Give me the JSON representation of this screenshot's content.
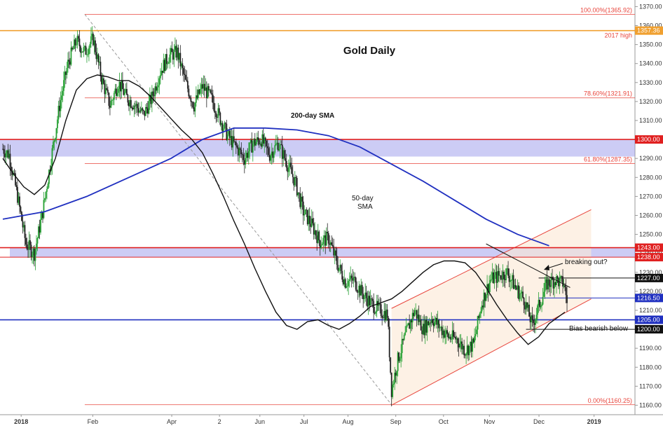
{
  "chart_data": {
    "type": "candlestick",
    "title": "Gold Daily",
    "ylim": [
      1155,
      1372
    ],
    "y_ticks": [
      1160,
      1170,
      1180,
      1190,
      1200,
      1210,
      1220,
      1230,
      1240,
      1250,
      1260,
      1270,
      1280,
      1290,
      1300,
      1310,
      1320,
      1330,
      1340,
      1350,
      1360,
      1370
    ],
    "x_labels": [
      "2018",
      "Feb",
      "Apr",
      "2",
      "Jun",
      "Jul",
      "Aug",
      "Sep",
      "Oct",
      "Nov",
      "Dec",
      "2019"
    ],
    "horizontal_levels": [
      {
        "value": 1365.92,
        "label": "100.00%(1365.92)",
        "kind": "fib",
        "color": "#e8453c"
      },
      {
        "value": 1357.36,
        "label": "2017 high",
        "tag": "1357.36",
        "kind": "resistance",
        "color": "#f0a030"
      },
      {
        "value": 1321.91,
        "label": "78.60%(1321.91)",
        "kind": "fib",
        "color": "#e8453c"
      },
      {
        "value": 1300.0,
        "tag": "1300.00",
        "kind": "level",
        "color": "#e02020"
      },
      {
        "value": 1287.35,
        "label": "61.80%(1287.35)",
        "kind": "fib",
        "color": "#e8453c"
      },
      {
        "value": 1243.0,
        "tag": "1243.00",
        "kind": "level",
        "color": "#e02020"
      },
      {
        "value": 1238.0,
        "tag": "1238.00",
        "kind": "level",
        "color": "#e02020"
      },
      {
        "value": 1227.0,
        "tag": "1227.00",
        "kind": "level",
        "color": "#111111"
      },
      {
        "value": 1216.5,
        "tag": "1216.50",
        "kind": "level",
        "color": "#2030c0"
      },
      {
        "value": 1205.0,
        "tag": "1205.00",
        "kind": "level",
        "color": "#2030c0"
      },
      {
        "value": 1200.0,
        "tag": "1200.00",
        "label": "Bias bearish below",
        "kind": "level",
        "color": "#111111"
      },
      {
        "value": 1160.25,
        "label": "0.00%(1160.25)",
        "kind": "fib",
        "color": "#e8453c"
      }
    ],
    "zones": [
      {
        "from": 1291,
        "to": 1300,
        "color": "#8e8ee8"
      },
      {
        "from": 1238,
        "to": 1243,
        "color": "#8e8ee8"
      }
    ],
    "annotations": {
      "sma200": "200-day SMA",
      "sma50_line1": "50-day",
      "sma50_line2": "SMA",
      "breakout": "breaking out?",
      "bias": "Bias bearish below"
    },
    "series": [
      {
        "name": "Gold",
        "type": "candlestick",
        "close_points": [
          [
            0,
            1295
          ],
          [
            6,
            1292
          ],
          [
            14,
            1270
          ],
          [
            22,
            1245
          ],
          [
            30,
            1240
          ],
          [
            38,
            1262
          ],
          [
            46,
            1290
          ],
          [
            54,
            1318
          ],
          [
            62,
            1340
          ],
          [
            70,
            1352
          ],
          [
            78,
            1346
          ],
          [
            86,
            1353
          ],
          [
            94,
            1332
          ],
          [
            102,
            1318
          ],
          [
            110,
            1330
          ],
          [
            118,
            1322
          ],
          [
            126,
            1318
          ],
          [
            134,
            1313
          ],
          [
            142,
            1322
          ],
          [
            150,
            1336
          ],
          [
            158,
            1344
          ],
          [
            166,
            1346
          ],
          [
            174,
            1330
          ],
          [
            182,
            1318
          ],
          [
            190,
            1328
          ],
          [
            198,
            1322
          ],
          [
            206,
            1312
          ],
          [
            214,
            1302
          ],
          [
            222,
            1296
          ],
          [
            230,
            1290
          ],
          [
            238,
            1298
          ],
          [
            246,
            1300
          ],
          [
            254,
            1292
          ],
          [
            262,
            1298
          ],
          [
            270,
            1288
          ],
          [
            278,
            1278
          ],
          [
            286,
            1262
          ],
          [
            294,
            1255
          ],
          [
            302,
            1246
          ],
          [
            310,
            1248
          ],
          [
            318,
            1235
          ],
          [
            326,
            1225
          ],
          [
            334,
            1226
          ],
          [
            342,
            1219
          ],
          [
            350,
            1214
          ],
          [
            358,
            1210
          ],
          [
            366,
            1208
          ],
          [
            370,
            1168
          ],
          [
            376,
            1184
          ],
          [
            384,
            1198
          ],
          [
            392,
            1210
          ],
          [
            400,
            1200
          ],
          [
            408,
            1206
          ],
          [
            416,
            1201
          ],
          [
            424,
            1196
          ],
          [
            432,
            1195
          ],
          [
            440,
            1189
          ],
          [
            448,
            1192
          ],
          [
            456,
            1214
          ],
          [
            464,
            1226
          ],
          [
            472,
            1228
          ],
          [
            480,
            1230
          ],
          [
            488,
            1222
          ],
          [
            496,
            1216
          ],
          [
            504,
            1202
          ],
          [
            510,
            1212
          ],
          [
            518,
            1224
          ],
          [
            526,
            1226
          ],
          [
            534,
            1224
          ],
          [
            538,
            1212
          ]
        ]
      },
      {
        "name": "200-day SMA",
        "type": "line",
        "color": "#2030c0",
        "points": [
          [
            0,
            1258
          ],
          [
            40,
            1262
          ],
          [
            80,
            1270
          ],
          [
            120,
            1280
          ],
          [
            160,
            1290
          ],
          [
            190,
            1300
          ],
          [
            220,
            1306
          ],
          [
            250,
            1306
          ],
          [
            280,
            1305
          ],
          [
            310,
            1302
          ],
          [
            340,
            1296
          ],
          [
            370,
            1287
          ],
          [
            400,
            1278
          ],
          [
            430,
            1268
          ],
          [
            460,
            1258
          ],
          [
            490,
            1250
          ],
          [
            520,
            1244
          ]
        ]
      },
      {
        "name": "50-day SMA",
        "type": "line",
        "color": "#111111",
        "points": [
          [
            0,
            1290
          ],
          [
            10,
            1282
          ],
          [
            20,
            1275
          ],
          [
            30,
            1271
          ],
          [
            40,
            1276
          ],
          [
            50,
            1290
          ],
          [
            60,
            1310
          ],
          [
            70,
            1326
          ],
          [
            80,
            1332
          ],
          [
            90,
            1334
          ],
          [
            100,
            1333
          ],
          [
            110,
            1331
          ],
          [
            120,
            1331
          ],
          [
            130,
            1328
          ],
          [
            140,
            1323
          ],
          [
            150,
            1317
          ],
          [
            160,
            1311
          ],
          [
            170,
            1305
          ],
          [
            180,
            1300
          ],
          [
            190,
            1293
          ],
          [
            200,
            1282
          ],
          [
            210,
            1270
          ],
          [
            220,
            1257
          ],
          [
            230,
            1245
          ],
          [
            240,
            1232
          ],
          [
            250,
            1220
          ],
          [
            260,
            1209
          ],
          [
            270,
            1202
          ],
          [
            280,
            1200
          ],
          [
            290,
            1204
          ],
          [
            300,
            1205
          ],
          [
            310,
            1202
          ],
          [
            320,
            1200
          ],
          [
            330,
            1203
          ],
          [
            340,
            1207
          ],
          [
            350,
            1212
          ],
          [
            360,
            1214
          ],
          [
            370,
            1216
          ],
          [
            380,
            1220
          ],
          [
            390,
            1225
          ],
          [
            400,
            1230
          ],
          [
            410,
            1234
          ],
          [
            420,
            1236
          ],
          [
            430,
            1236
          ],
          [
            440,
            1235
          ],
          [
            450,
            1230
          ],
          [
            460,
            1222
          ],
          [
            470,
            1213
          ],
          [
            480,
            1205
          ],
          [
            490,
            1198
          ],
          [
            500,
            1192
          ],
          [
            510,
            1196
          ],
          [
            520,
            1203
          ],
          [
            530,
            1207
          ],
          [
            535,
            1209
          ]
        ]
      }
    ],
    "channel": {
      "lower": [
        [
          370,
          1160
        ],
        [
          560,
          1216
        ]
      ],
      "upper": [
        [
          370,
          1211
        ],
        [
          560,
          1263
        ]
      ]
    }
  }
}
